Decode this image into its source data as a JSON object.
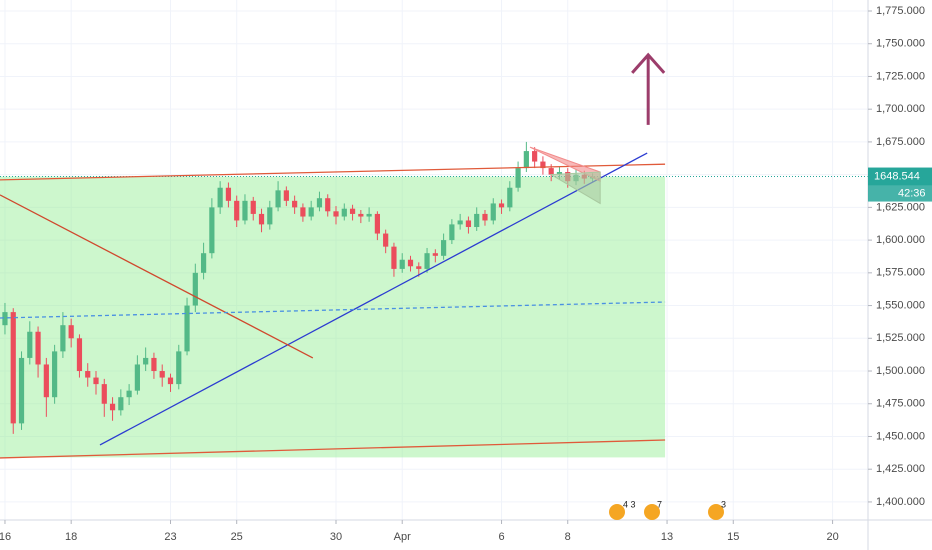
{
  "chart_data": {
    "type": "candlestick",
    "xlim": [
      -0.15,
      26.07
    ],
    "ylim": [
      1386.2,
      1783.4
    ],
    "xticks": [
      {
        "value": 0,
        "label": "16"
      },
      {
        "value": 2,
        "label": "18"
      },
      {
        "value": 5,
        "label": "23"
      },
      {
        "value": 7,
        "label": "25"
      },
      {
        "value": 10,
        "label": "30"
      },
      {
        "value": 12,
        "label": "Apr"
      },
      {
        "value": 15,
        "label": "6"
      },
      {
        "value": 17,
        "label": "8"
      },
      {
        "value": 20,
        "label": "13"
      },
      {
        "value": 22,
        "label": "15"
      },
      {
        "value": 25,
        "label": "20"
      }
    ],
    "yticks": [
      {
        "value": 1400,
        "label": "1,400.000"
      },
      {
        "value": 1425,
        "label": "1,425.000"
      },
      {
        "value": 1450,
        "label": "1,450.000"
      },
      {
        "value": 1475,
        "label": "1,475.000"
      },
      {
        "value": 1500,
        "label": "1,500.000"
      },
      {
        "value": 1525,
        "label": "1,525.000"
      },
      {
        "value": 1550,
        "label": "1,550.000"
      },
      {
        "value": 1575,
        "label": "1,575.000"
      },
      {
        "value": 1600,
        "label": "1,600.000"
      },
      {
        "value": 1625,
        "label": "1,625.000"
      },
      {
        "value": 1650,
        "label": "1,650.000"
      },
      {
        "value": 1675,
        "label": "1,675.000"
      },
      {
        "value": 1700,
        "label": "1,700.000"
      },
      {
        "value": 1725,
        "label": "1,725.000"
      },
      {
        "value": 1750,
        "label": "1,750.000"
      },
      {
        "value": 1775,
        "label": "1,775.000"
      }
    ],
    "grid": true,
    "up_color": "#53b987",
    "down_color": "#eb4d5c",
    "x": [
      0,
      0.25,
      0.5,
      0.75,
      1,
      1.25,
      1.5,
      1.75,
      2,
      2.25,
      2.5,
      2.75,
      3,
      3.25,
      3.5,
      3.75,
      4,
      4.25,
      4.5,
      4.75,
      5,
      5.25,
      5.5,
      5.75,
      6,
      6.25,
      6.5,
      6.75,
      7,
      7.25,
      7.5,
      7.75,
      8,
      8.25,
      8.5,
      8.75,
      9,
      9.25,
      9.5,
      9.75,
      10,
      10.25,
      10.5,
      10.75,
      11,
      11.25,
      11.5,
      11.75,
      12,
      12.25,
      12.5,
      12.75,
      13,
      13.25,
      13.5,
      13.75,
      14,
      14.25,
      14.5,
      14.75,
      15,
      15.25,
      15.5,
      15.75,
      16,
      16.25,
      16.5,
      16.75,
      17,
      17.25,
      17.5,
      17.75
    ],
    "candles": [
      [
        1535,
        1552,
        1528,
        1545
      ],
      [
        1545,
        1548,
        1452,
        1460
      ],
      [
        1460,
        1515,
        1455,
        1510
      ],
      [
        1510,
        1538,
        1505,
        1530
      ],
      [
        1530,
        1534,
        1495,
        1505
      ],
      [
        1505,
        1510,
        1465,
        1480
      ],
      [
        1480,
        1520,
        1475,
        1515
      ],
      [
        1515,
        1545,
        1510,
        1535
      ],
      [
        1535,
        1540,
        1518,
        1525
      ],
      [
        1525,
        1528,
        1495,
        1500
      ],
      [
        1500,
        1506,
        1488,
        1495
      ],
      [
        1495,
        1500,
        1482,
        1490
      ],
      [
        1490,
        1494,
        1465,
        1475
      ],
      [
        1475,
        1480,
        1462,
        1470
      ],
      [
        1470,
        1486,
        1466,
        1480
      ],
      [
        1480,
        1490,
        1474,
        1485
      ],
      [
        1485,
        1512,
        1482,
        1505
      ],
      [
        1505,
        1518,
        1500,
        1510
      ],
      [
        1510,
        1514,
        1494,
        1500
      ],
      [
        1500,
        1505,
        1488,
        1495
      ],
      [
        1495,
        1498,
        1484,
        1490
      ],
      [
        1490,
        1520,
        1486,
        1515
      ],
      [
        1515,
        1556,
        1512,
        1550
      ],
      [
        1550,
        1582,
        1545,
        1575
      ],
      [
        1575,
        1598,
        1570,
        1590
      ],
      [
        1590,
        1632,
        1586,
        1625
      ],
      [
        1625,
        1645,
        1620,
        1640
      ],
      [
        1640,
        1644,
        1625,
        1630
      ],
      [
        1630,
        1634,
        1610,
        1615
      ],
      [
        1615,
        1635,
        1612,
        1630
      ],
      [
        1630,
        1633,
        1615,
        1620
      ],
      [
        1620,
        1624,
        1606,
        1612
      ],
      [
        1612,
        1630,
        1608,
        1625
      ],
      [
        1625,
        1645,
        1622,
        1638
      ],
      [
        1638,
        1641,
        1626,
        1630
      ],
      [
        1630,
        1634,
        1620,
        1625
      ],
      [
        1625,
        1628,
        1614,
        1618
      ],
      [
        1618,
        1630,
        1615,
        1625
      ],
      [
        1625,
        1637,
        1622,
        1632
      ],
      [
        1632,
        1635,
        1618,
        1622
      ],
      [
        1622,
        1626,
        1612,
        1618
      ],
      [
        1618,
        1628,
        1615,
        1624
      ],
      [
        1624,
        1627,
        1615,
        1620
      ],
      [
        1620,
        1623,
        1613,
        1618
      ],
      [
        1618,
        1625,
        1614,
        1620
      ],
      [
        1620,
        1622,
        1600,
        1605
      ],
      [
        1605,
        1608,
        1590,
        1595
      ],
      [
        1595,
        1598,
        1572,
        1578
      ],
      [
        1578,
        1590,
        1575,
        1585
      ],
      [
        1585,
        1588,
        1576,
        1580
      ],
      [
        1580,
        1583,
        1572,
        1578
      ],
      [
        1578,
        1594,
        1575,
        1590
      ],
      [
        1590,
        1593,
        1583,
        1588
      ],
      [
        1588,
        1605,
        1585,
        1600
      ],
      [
        1600,
        1616,
        1597,
        1612
      ],
      [
        1612,
        1620,
        1608,
        1615
      ],
      [
        1615,
        1618,
        1605,
        1610
      ],
      [
        1610,
        1625,
        1607,
        1620
      ],
      [
        1620,
        1623,
        1611,
        1615
      ],
      [
        1615,
        1632,
        1612,
        1628
      ],
      [
        1628,
        1631,
        1620,
        1625
      ],
      [
        1625,
        1645,
        1622,
        1640
      ],
      [
        1640,
        1660,
        1637,
        1655
      ],
      [
        1655,
        1675,
        1652,
        1668
      ],
      [
        1668,
        1671,
        1655,
        1660
      ],
      [
        1660,
        1664,
        1650,
        1655
      ],
      [
        1655,
        1658,
        1645,
        1650
      ],
      [
        1650,
        1656,
        1646,
        1652
      ],
      [
        1652,
        1655,
        1640,
        1645
      ],
      [
        1645,
        1654,
        1642,
        1650
      ],
      [
        1650,
        1653,
        1643,
        1647
      ],
      [
        1647,
        1651,
        1644,
        1648.544
      ]
    ],
    "last_price": 1648.544,
    "countdown": "42:36",
    "zones": [
      {
        "color": "#90ee90",
        "x": [
          -0.15,
          19.94
        ],
        "y": [
          1648.5,
          1434
        ]
      }
    ],
    "drawings": [
      {
        "color": "#e05a3a",
        "dash": false,
        "x": [
          -0.15,
          19.94
        ],
        "y": [
          1646,
          1658
        ]
      },
      {
        "color": "#e05a3a",
        "dash": false,
        "x": [
          -0.15,
          19.94
        ],
        "y": [
          1433.6,
          1447.3
        ]
      },
      {
        "color": "#2b3bd1",
        "dash": false,
        "x": [
          2.87,
          19.4
        ],
        "y": [
          1443.5,
          1666.5
        ]
      },
      {
        "color": "#d0482d",
        "dash": false,
        "x": [
          -0.15,
          9.3
        ],
        "y": [
          1634.5,
          1510
        ]
      },
      {
        "color": "#4a90e2",
        "dash": true,
        "x": [
          -0.15,
          19.94
        ],
        "y": [
          1540.5,
          1552.7
        ]
      }
    ],
    "triangles": [
      {
        "color": "#f28b8b",
        "x": [
          15.86,
          17.98,
          17.98
        ],
        "y": [
          1671,
          1652,
          1645
        ]
      },
      {
        "color": "#a9c9a0",
        "x": [
          16.5,
          17.98,
          17.98
        ],
        "y": [
          1650,
          1652,
          1628
        ]
      }
    ],
    "arrow": {
      "color": "#9c3d6b",
      "x": 19.43,
      "y": [
        1688,
        1741.5
      ]
    },
    "events": [
      "4 3",
      "7",
      "3"
    ]
  }
}
